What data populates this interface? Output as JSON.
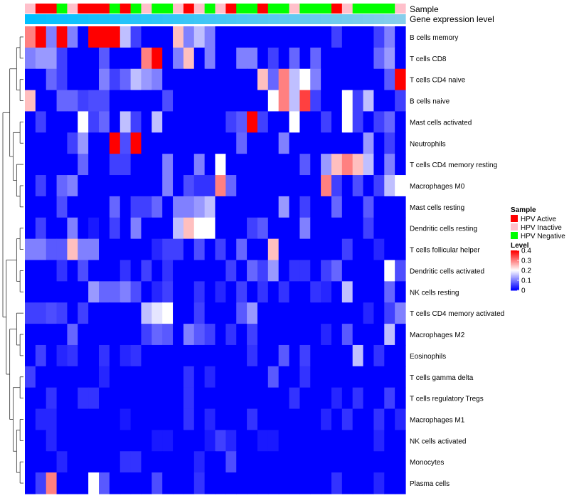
{
  "chart_data": {
    "type": "heatmap",
    "title": "",
    "annotation_tracks": [
      "Sample",
      "Gene expression level"
    ],
    "sample_annotation": [
      "HPV Inactive",
      "HPV Active",
      "HPV Active",
      "HPV Negative",
      "HPV Inactive",
      "HPV Active",
      "HPV Active",
      "HPV Active",
      "HPV Negative",
      "HPV Active",
      "HPV Negative",
      "HPV Inactive",
      "HPV Negative",
      "HPV Negative",
      "HPV Inactive",
      "HPV Active",
      "HPV Inactive",
      "HPV Negative",
      "HPV Inactive",
      "HPV Active",
      "HPV Negative",
      "HPV Negative",
      "HPV Active",
      "HPV Negative",
      "HPV Negative",
      "HPV Inactive",
      "HPV Negative",
      "HPV Negative",
      "HPV Negative",
      "HPV Active",
      "HPV Inactive",
      "HPV Negative",
      "HPV Negative",
      "HPV Negative",
      "HPV Negative",
      "HPV Inactive"
    ],
    "sample_colors": {
      "HPV Active": "#FF0000",
      "HPV Inactive": "#FFC0CB",
      "HPV Negative": "#00FF00"
    },
    "expression_gradient": [
      "#00BFFF",
      "#87CEEB"
    ],
    "rows": [
      "B cells memory",
      "T cells CD8",
      "T cells CD4 naive",
      "B cells naive",
      "Mast cells activated",
      "Neutrophils",
      "T cells CD4 memory resting",
      "Macrophages M0",
      "Mast cells resting",
      "Dendritic cells resting",
      "T cells follicular helper",
      "Dendritic cells activated",
      "NK cells resting",
      "T cells CD4 memory activated",
      "Macrophages M2",
      "Eosinophils",
      "T cells gamma delta",
      "T cells regulatory  Tregs",
      "Macrophages M1",
      "NK cells activated",
      "Monocytes",
      "Plasma cells"
    ],
    "values": [
      [
        0.3,
        0.4,
        0.1,
        0.4,
        0.1,
        0.0,
        0.4,
        0.4,
        0.4,
        0.15,
        0.05,
        0.0,
        0.0,
        0.0,
        0.25,
        0.1,
        0.15,
        0.1,
        0.0,
        0.0,
        0.0,
        0.0,
        0.0,
        0.0,
        0.0,
        0.0,
        0.0,
        0.0,
        0.0,
        0.05,
        0.0,
        0.0,
        0.0,
        0.05,
        0.1,
        0.0
      ],
      [
        0.1,
        0.12,
        0.12,
        0.05,
        0.0,
        0.0,
        0.0,
        0.07,
        0.0,
        0.0,
        0.0,
        0.3,
        0.4,
        0.0,
        0.1,
        0.25,
        0.0,
        0.1,
        0.0,
        0.0,
        0.1,
        0.1,
        0.0,
        0.05,
        0.0,
        0.08,
        0.0,
        0.08,
        0.0,
        0.0,
        0.0,
        0.0,
        0.0,
        0.08,
        0.12,
        0.0
      ],
      [
        0.0,
        0.0,
        0.08,
        0.05,
        0.0,
        0.0,
        0.0,
        0.1,
        0.05,
        0.08,
        0.15,
        0.12,
        0.1,
        0.0,
        0.0,
        0.0,
        0.0,
        0.0,
        0.0,
        0.0,
        0.0,
        0.0,
        0.25,
        0.08,
        0.3,
        0.15,
        0.2,
        0.1,
        0.0,
        0.0,
        0.0,
        0.0,
        0.0,
        0.0,
        0.07,
        0.4
      ],
      [
        0.25,
        0.0,
        0.0,
        0.08,
        0.08,
        0.05,
        0.06,
        0.06,
        0.0,
        0.0,
        0.0,
        0.0,
        0.0,
        0.06,
        0.0,
        0.0,
        0.0,
        0.0,
        0.0,
        0.0,
        0.0,
        0.0,
        0.0,
        0.2,
        0.3,
        0.15,
        0.35,
        0.05,
        0.0,
        0.0,
        0.2,
        0.05,
        0.15,
        0.0,
        0.0,
        0.05
      ],
      [
        0.0,
        0.05,
        0.0,
        0.0,
        0.0,
        0.2,
        0.05,
        0.08,
        0.0,
        0.15,
        0.05,
        0.0,
        0.15,
        0.0,
        0.0,
        0.0,
        0.0,
        0.0,
        0.0,
        0.05,
        0.07,
        0.4,
        0.05,
        0.0,
        0.0,
        0.2,
        0.0,
        0.0,
        0.05,
        0.0,
        0.2,
        0.05,
        0.0,
        0.05,
        0.08,
        0.0
      ],
      [
        0.0,
        0.0,
        0.0,
        0.0,
        0.05,
        0.12,
        0.0,
        0.0,
        0.4,
        0.06,
        0.4,
        0.0,
        0.0,
        0.0,
        0.0,
        0.0,
        0.0,
        0.0,
        0.0,
        0.0,
        0.08,
        0.0,
        0.0,
        0.0,
        0.1,
        0.0,
        0.0,
        0.0,
        0.0,
        0.0,
        0.0,
        0.0,
        0.12,
        0.0,
        0.05,
        0.0
      ],
      [
        0.0,
        0.0,
        0.0,
        0.0,
        0.0,
        0.08,
        0.0,
        0.0,
        0.05,
        0.05,
        0.0,
        0.0,
        0.0,
        0.1,
        0.0,
        0.0,
        0.1,
        0.0,
        0.2,
        0.0,
        0.0,
        0.0,
        0.0,
        0.0,
        0.0,
        0.0,
        0.07,
        0.0,
        0.12,
        0.25,
        0.3,
        0.25,
        0.15,
        0.0,
        0.1,
        0.0
      ],
      [
        0.0,
        0.05,
        0.0,
        0.08,
        0.1,
        0.0,
        0.0,
        0.0,
        0.0,
        0.0,
        0.0,
        0.0,
        0.0,
        0.1,
        0.0,
        0.06,
        0.04,
        0.04,
        0.3,
        0.08,
        0.0,
        0.0,
        0.0,
        0.0,
        0.0,
        0.0,
        0.0,
        0.0,
        0.3,
        0.05,
        0.0,
        0.06,
        0.0,
        0.05,
        0.15,
        0.2
      ],
      [
        0.0,
        0.0,
        0.0,
        0.06,
        0.0,
        0.0,
        0.0,
        0.0,
        0.08,
        0.0,
        0.05,
        0.05,
        0.08,
        0.0,
        0.1,
        0.1,
        0.12,
        0.15,
        0.0,
        0.0,
        0.0,
        0.0,
        0.0,
        0.0,
        0.12,
        0.0,
        0.05,
        0.0,
        0.0,
        0.08,
        0.0,
        0.0,
        0.07,
        0.0,
        0.0,
        0.0
      ],
      [
        0.0,
        0.05,
        0.0,
        0.0,
        0.1,
        0.0,
        0.02,
        0.0,
        0.05,
        0.0,
        0.1,
        0.0,
        0.0,
        0.0,
        0.15,
        0.25,
        0.2,
        0.2,
        0.0,
        0.0,
        0.0,
        0.05,
        0.07,
        0.0,
        0.0,
        0.0,
        0.1,
        0.0,
        0.0,
        0.0,
        0.0,
        0.0,
        0.05,
        0.0,
        0.0,
        0.0
      ],
      [
        0.1,
        0.1,
        0.07,
        0.07,
        0.25,
        0.1,
        0.1,
        0.0,
        0.0,
        0.0,
        0.0,
        0.0,
        0.03,
        0.05,
        0.05,
        0.0,
        0.06,
        0.0,
        0.05,
        0.0,
        0.08,
        0.0,
        0.0,
        0.25,
        0.0,
        0.0,
        0.0,
        0.0,
        0.0,
        0.0,
        0.05,
        0.0,
        0.0,
        0.03,
        0.0,
        0.0
      ],
      [
        0.0,
        0.0,
        0.0,
        0.04,
        0.0,
        0.06,
        0.0,
        0.0,
        0.0,
        0.04,
        0.0,
        0.05,
        0.0,
        0.04,
        0.0,
        0.0,
        0.0,
        0.0,
        0.0,
        0.05,
        0.0,
        0.08,
        0.05,
        0.12,
        0.0,
        0.04,
        0.04,
        0.0,
        0.05,
        0.08,
        0.0,
        0.0,
        0.0,
        0.0,
        0.2,
        0.06
      ],
      [
        0.0,
        0.0,
        0.0,
        0.0,
        0.0,
        0.0,
        0.12,
        0.08,
        0.08,
        0.1,
        0.06,
        0.0,
        0.03,
        0.05,
        0.0,
        0.0,
        0.04,
        0.0,
        0.03,
        0.0,
        0.05,
        0.0,
        0.04,
        0.0,
        0.04,
        0.0,
        0.0,
        0.04,
        0.03,
        0.0,
        0.15,
        0.0,
        0.0,
        0.0,
        0.08,
        0.0
      ],
      [
        0.05,
        0.05,
        0.06,
        0.05,
        0.0,
        0.05,
        0.0,
        0.0,
        0.0,
        0.0,
        0.0,
        0.15,
        0.18,
        0.2,
        0.0,
        0.0,
        0.05,
        0.0,
        0.0,
        0.0,
        0.07,
        0.12,
        0.0,
        0.0,
        0.0,
        0.0,
        0.0,
        0.0,
        0.0,
        0.0,
        0.0,
        0.0,
        0.03,
        0.0,
        0.05,
        0.1
      ],
      [
        0.0,
        0.0,
        0.0,
        0.0,
        0.08,
        0.0,
        0.0,
        0.0,
        0.0,
        0.0,
        0.0,
        0.05,
        0.08,
        0.07,
        0.0,
        0.1,
        0.07,
        0.05,
        0.0,
        0.04,
        0.0,
        0.05,
        0.0,
        0.0,
        0.0,
        0.0,
        0.0,
        0.0,
        0.03,
        0.0,
        0.07,
        0.0,
        0.0,
        0.0,
        0.15,
        0.0
      ],
      [
        0.0,
        0.05,
        0.0,
        0.03,
        0.04,
        0.0,
        0.0,
        0.04,
        0.0,
        0.03,
        0.04,
        0.0,
        0.0,
        0.0,
        0.0,
        0.0,
        0.0,
        0.0,
        0.0,
        0.0,
        0.0,
        0.04,
        0.0,
        0.0,
        0.07,
        0.0,
        0.05,
        0.0,
        0.0,
        0.0,
        0.0,
        0.15,
        0.0,
        0.04,
        0.0,
        0.0
      ],
      [
        0.05,
        0.0,
        0.0,
        0.0,
        0.0,
        0.0,
        0.0,
        0.03,
        0.0,
        0.0,
        0.0,
        0.0,
        0.0,
        0.0,
        0.0,
        0.04,
        0.0,
        0.03,
        0.0,
        0.0,
        0.0,
        0.0,
        0.0,
        0.07,
        0.0,
        0.0,
        0.04,
        0.0,
        0.0,
        0.0,
        0.0,
        0.0,
        0.0,
        0.0,
        0.0,
        0.0
      ],
      [
        0.0,
        0.0,
        0.04,
        0.0,
        0.0,
        0.04,
        0.04,
        0.0,
        0.0,
        0.0,
        0.0,
        0.0,
        0.0,
        0.0,
        0.0,
        0.04,
        0.0,
        0.0,
        0.0,
        0.0,
        0.0,
        0.0,
        0.0,
        0.0,
        0.0,
        0.04,
        0.0,
        0.0,
        0.0,
        0.03,
        0.0,
        0.04,
        0.0,
        0.0,
        0.05,
        0.0
      ],
      [
        0.0,
        0.03,
        0.03,
        0.0,
        0.0,
        0.0,
        0.0,
        0.0,
        0.0,
        0.02,
        0.0,
        0.0,
        0.0,
        0.0,
        0.0,
        0.04,
        0.0,
        0.03,
        0.0,
        0.0,
        0.0,
        0.04,
        0.0,
        0.0,
        0.0,
        0.0,
        0.0,
        0.0,
        0.03,
        0.0,
        0.04,
        0.0,
        0.0,
        0.04,
        0.0,
        0.03
      ],
      [
        0.0,
        0.0,
        0.03,
        0.0,
        0.0,
        0.0,
        0.0,
        0.0,
        0.0,
        0.0,
        0.0,
        0.0,
        0.02,
        0.02,
        0.0,
        0.0,
        0.0,
        0.02,
        0.05,
        0.03,
        0.0,
        0.0,
        0.02,
        0.02,
        0.0,
        0.0,
        0.0,
        0.0,
        0.0,
        0.0,
        0.0,
        0.0,
        0.0,
        0.03,
        0.0,
        0.0
      ],
      [
        0.0,
        0.0,
        0.0,
        0.03,
        0.0,
        0.0,
        0.0,
        0.0,
        0.0,
        0.04,
        0.04,
        0.0,
        0.0,
        0.0,
        0.0,
        0.0,
        0.03,
        0.0,
        0.0,
        0.06,
        0.0,
        0.0,
        0.0,
        0.0,
        0.0,
        0.0,
        0.0,
        0.0,
        0.0,
        0.0,
        0.0,
        0.0,
        0.0,
        0.0,
        0.0,
        0.0
      ],
      [
        0.0,
        0.05,
        0.3,
        0.0,
        0.0,
        0.0,
        0.2,
        0.07,
        0.0,
        0.0,
        0.0,
        0.0,
        0.06,
        0.0,
        0.0,
        0.0,
        0.04,
        0.0,
        0.0,
        0.0,
        0.0,
        0.0,
        0.0,
        0.0,
        0.0,
        0.0,
        0.0,
        0.0,
        0.0,
        0.04,
        0.0,
        0.0,
        0.0,
        0.03,
        0.0,
        0.0
      ]
    ],
    "color_scale": {
      "min": 0,
      "mid": 0.2,
      "max": 0.4,
      "low": "#0000FF",
      "mid_color": "#FFFFFF",
      "high": "#FF0000"
    },
    "legend": {
      "sample_title": "Sample",
      "sample_entries": [
        "HPV Active",
        "HPV Inactive",
        "HPV Negative"
      ],
      "level_title": "Level",
      "level_ticks": [
        "0.4",
        "0.3",
        "0.2",
        "0.1",
        "0"
      ],
      "level_tick_values": [
        0.4,
        0.3,
        0.2,
        0.1,
        0
      ]
    }
  }
}
